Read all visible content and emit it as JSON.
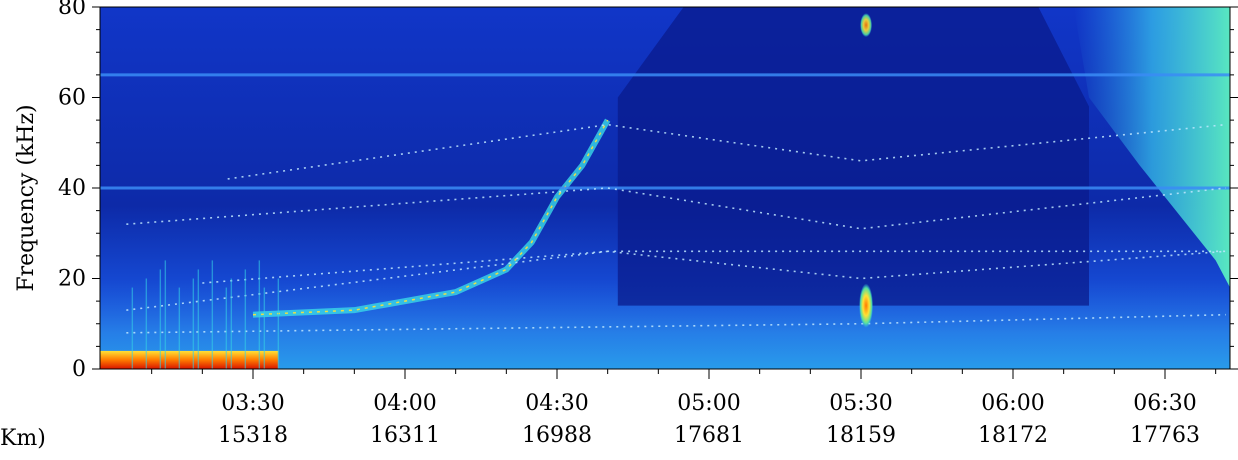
{
  "chart_data": {
    "type": "heatmap",
    "ylabel": "Frequency (kHz)",
    "xlabel_fragment": "Km)",
    "ylim": [
      0,
      80
    ],
    "y_ticks": [
      0,
      20,
      40,
      60,
      80
    ],
    "time_range": [
      "03:05",
      "06:42"
    ],
    "x_ticks": [
      {
        "time": "03:30",
        "distance": "15318"
      },
      {
        "time": "04:00",
        "distance": "16311"
      },
      {
        "time": "04:30",
        "distance": "16988"
      },
      {
        "time": "05:00",
        "distance": "17681"
      },
      {
        "time": "05:30",
        "distance": "18159"
      },
      {
        "time": "06:00",
        "distance": "18172"
      },
      {
        "time": "06:30",
        "distance": "17763"
      }
    ],
    "colorscale": [
      "#0a1890",
      "#1444dc",
      "#2f8cf0",
      "#35d2e6",
      "#a0f0a0",
      "#ffe135",
      "#ff7a00",
      "#d81400"
    ],
    "features": {
      "background_level": "dark-blue",
      "constant_lines_khz": [
        40,
        65
      ],
      "dotted_harmonic_bands": [
        {
          "points": [
            [
              "03:05",
              8
            ],
            [
              "05:30",
              10
            ],
            [
              "06:42",
              12
            ]
          ]
        },
        {
          "points": [
            [
              "03:05",
              13
            ],
            [
              "04:40",
              26
            ],
            [
              "05:30",
              20
            ],
            [
              "06:42",
              26
            ]
          ]
        },
        {
          "points": [
            [
              "03:20",
              19
            ],
            [
              "04:40",
              26
            ],
            [
              "06:42",
              26
            ]
          ]
        },
        {
          "points": [
            [
              "03:05",
              32
            ],
            [
              "04:40",
              40
            ],
            [
              "05:30",
              31
            ],
            [
              "06:42",
              40
            ]
          ]
        },
        {
          "points": [
            [
              "03:25",
              42
            ],
            [
              "04:40",
              54
            ],
            [
              "05:30",
              46
            ],
            [
              "06:42",
              54
            ]
          ]
        }
      ],
      "low_frequency_hot_band": {
        "from": "03:05",
        "to": "03:35",
        "khz_max": 4
      },
      "burst_at_0530": {
        "time": "05:31",
        "khz": [
          10,
          18
        ]
      }
    }
  }
}
